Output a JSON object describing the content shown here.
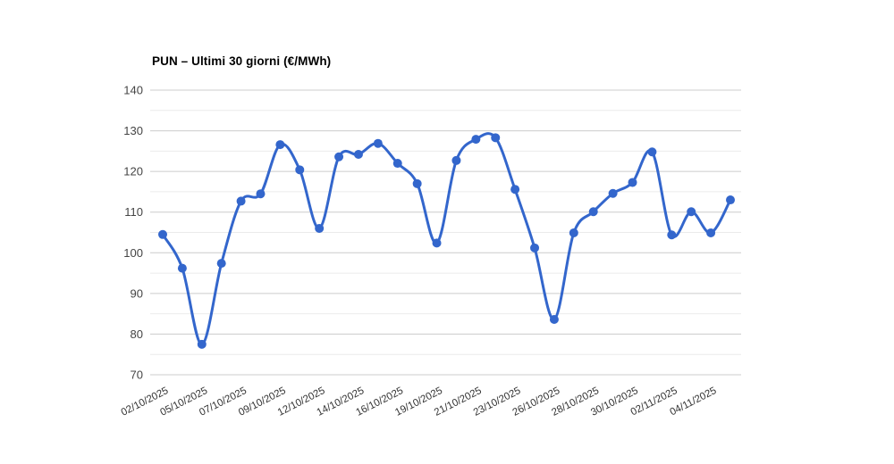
{
  "page": {
    "background_color": "#ffffff"
  },
  "chart_data": {
    "type": "line",
    "title": "PUN – Ultimi 30 giorni (€/MWh)",
    "xlabel": "",
    "ylabel": "",
    "ylim": [
      70,
      140
    ],
    "y_ticks": [
      140,
      130,
      120,
      110,
      100,
      90,
      80,
      70
    ],
    "y_minor_tick_step": 5,
    "grid": "on",
    "legend_position": "none",
    "curve": "smooth",
    "points_count": 30,
    "x_tick_labels": [
      "02/10/2025",
      "05/10/2025",
      "07/10/2025",
      "09/10/2025",
      "12/10/2025",
      "14/10/2025",
      "16/10/2025",
      "19/10/2025",
      "21/10/2025",
      "23/10/2025",
      "26/10/2025",
      "28/10/2025",
      "30/10/2025",
      "02/11/2025",
      "04/11/2025"
    ],
    "x_tick_positions": [
      0,
      2,
      4,
      6,
      8,
      10,
      12,
      14,
      16,
      18,
      20,
      22,
      24,
      26,
      28
    ],
    "series": [
      {
        "name": "PUN",
        "color": "#3366cc",
        "values": [
          104.5,
          96.2,
          77.5,
          97.4,
          112.7,
          114.5,
          126.6,
          120.4,
          106.0,
          123.6,
          124.2,
          126.9,
          122.0,
          117.0,
          102.4,
          122.7,
          127.9,
          128.3,
          115.6,
          101.2,
          83.6,
          104.9,
          110.1,
          114.6,
          117.3,
          124.8,
          104.4,
          110.1,
          104.9,
          113.0
        ]
      }
    ],
    "colors": {
      "line": "#3366cc",
      "point": "#3366cc",
      "grid_major": "#cccccc",
      "grid_minor": "#ebebeb",
      "y_label": "#444444",
      "x_label": "#333333",
      "title": "#000000"
    }
  }
}
